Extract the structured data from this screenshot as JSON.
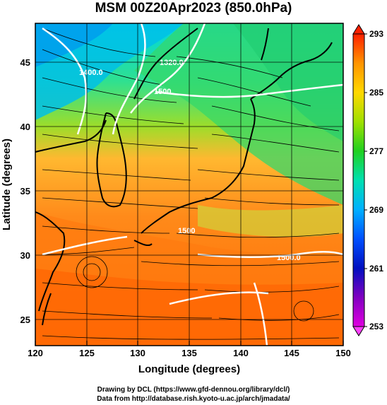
{
  "title": "MSM 00Z20Apr2023 (850.0hPa)",
  "x_axis": {
    "label": "Longitude (degrees)",
    "ticks": [
      "120",
      "125",
      "130",
      "135",
      "140",
      "145",
      "150"
    ]
  },
  "y_axis": {
    "label": "Latitude  (degrees)",
    "ticks": [
      "45",
      "40",
      "35",
      "30",
      "25"
    ]
  },
  "colorbar": {
    "labels": [
      "293",
      "285",
      "277",
      "269",
      "261",
      "253"
    ]
  },
  "contour_labels": [
    "1320.0",
    "1400.0",
    "1500",
    "1500.0",
    "1500"
  ],
  "footer": {
    "line1": "Drawing by DCL (https://www.gfd-dennou.org/library/dcl/)",
    "line2": "Data from http://database.rish.kyoto-u.ac.jp/arch/jmadata/"
  },
  "chart_data": {
    "type": "map",
    "title": "MSM 00Z20Apr2023 (850.0hPa)",
    "xlabel": "Longitude (degrees)",
    "ylabel": "Latitude  (degrees)",
    "xlim": [
      120,
      150
    ],
    "ylim": [
      22.5,
      47.5
    ],
    "x_ticks": [
      120,
      125,
      130,
      135,
      140,
      145,
      150
    ],
    "y_ticks": [
      25,
      30,
      35,
      40,
      45
    ],
    "colorbar_range": [
      253,
      293
    ],
    "colorbar_ticks": [
      293,
      285,
      277,
      269,
      261,
      253
    ],
    "grid": true,
    "fields": [
      "temperature (shaded)",
      "geopotential height (white contours)",
      "wind (streamlines)"
    ]
  }
}
